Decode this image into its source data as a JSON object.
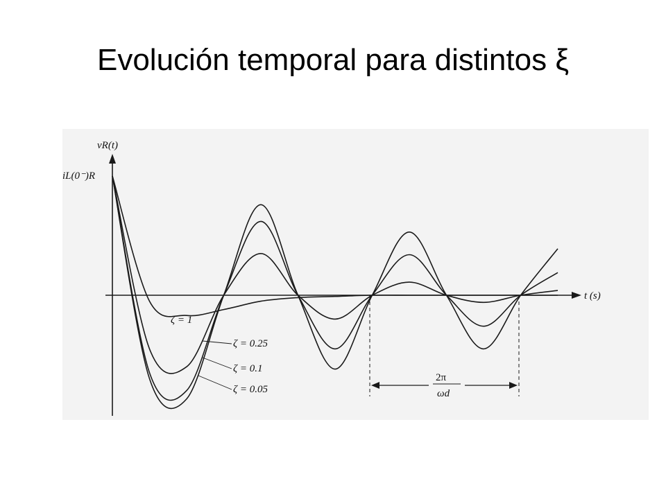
{
  "slide": {
    "title": "Evolución temporal para distintos ξ"
  },
  "colors": {
    "ink": "#1a1a1a",
    "scan_bg": "#f3f3f3",
    "page": "#ffffff"
  },
  "chart_data": {
    "type": "line",
    "xlabel": "t (s)",
    "ylabel": "vR(t)",
    "y0_label": "iL(0⁻)R",
    "period_label": {
      "num": "2π",
      "den": "ωd"
    },
    "x": [
      0.0,
      0.25,
      0.5,
      0.75,
      1.0,
      1.25,
      1.5,
      1.75,
      2.0,
      2.25,
      2.5,
      2.75,
      3.0
    ],
    "series": [
      {
        "name": "ζ = 1",
        "values": [
          1.0,
          -0.05,
          -0.17,
          -0.12,
          -0.05,
          -0.02,
          -0.01,
          0.0,
          0.0,
          0.0,
          0.0,
          0.0,
          0.0
        ]
      },
      {
        "name": "ζ = 0.25",
        "values": [
          1.0,
          -0.45,
          -0.6,
          0.0,
          0.35,
          0.0,
          -0.2,
          0.0,
          0.11,
          0.0,
          -0.06,
          0.0,
          0.04
        ]
      },
      {
        "name": "ζ = 0.1",
        "values": [
          1.0,
          -0.65,
          -0.8,
          0.0,
          0.62,
          0.0,
          -0.45,
          0.0,
          0.34,
          0.0,
          -0.26,
          0.0,
          0.19
        ]
      },
      {
        "name": "ζ = 0.05",
        "values": [
          1.0,
          -0.7,
          -0.87,
          0.0,
          0.76,
          0.0,
          -0.62,
          0.0,
          0.53,
          0.0,
          -0.45,
          0.0,
          0.39
        ]
      }
    ]
  }
}
